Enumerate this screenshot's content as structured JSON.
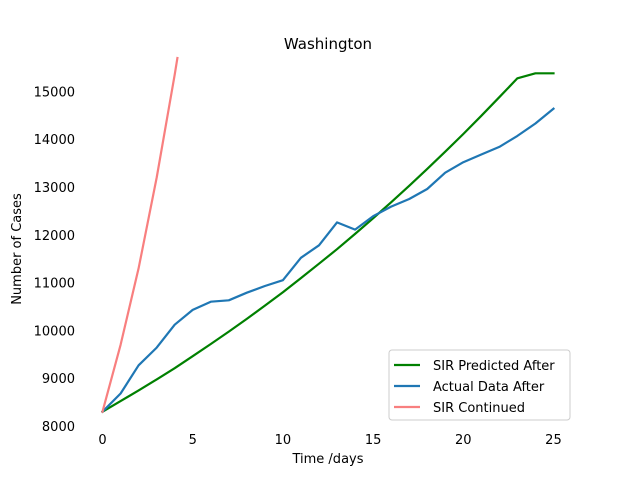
{
  "chart_data": {
    "type": "line",
    "title": "Washington",
    "xlabel": "Time /days",
    "ylabel": "Number of Cases",
    "xlim": [
      -1.25,
      26.25
    ],
    "ylim": [
      8000,
      15700
    ],
    "xticks": [
      0,
      5,
      10,
      15,
      20,
      25
    ],
    "yticks": [
      8000,
      9000,
      10000,
      11000,
      12000,
      13000,
      14000,
      15000
    ],
    "grid": false,
    "legend_position": "lower right",
    "series": [
      {
        "name": "SIR Predicted After",
        "color": "#008000",
        "x": [
          0,
          1,
          2,
          3,
          4,
          5,
          6,
          7,
          8,
          9,
          10,
          11,
          12,
          13,
          14,
          15,
          16,
          17,
          18,
          19,
          20,
          21,
          22,
          23,
          24,
          25
        ],
        "values": [
          8300,
          8520,
          8745,
          8975,
          9210,
          9460,
          9715,
          9975,
          10240,
          10520,
          10800,
          11095,
          11395,
          11700,
          12020,
          12345,
          12680,
          13025,
          13380,
          13740,
          14110,
          14490,
          14880,
          15275,
          15380,
          15380
        ]
      },
      {
        "name": "Actual Data After",
        "color": "#1f77b4",
        "x": [
          0,
          1,
          2,
          3,
          4,
          5,
          6,
          7,
          8,
          9,
          10,
          11,
          12,
          13,
          14,
          15,
          16,
          17,
          18,
          19,
          20,
          21,
          22,
          23,
          24,
          25
        ],
        "values": [
          8300,
          8680,
          9270,
          9640,
          10120,
          10430,
          10600,
          10630,
          10790,
          10930,
          11050,
          11520,
          11780,
          12260,
          12110,
          12390,
          12590,
          12750,
          12960,
          13300,
          13520,
          13680,
          13840,
          14070,
          14330,
          14640
        ]
      },
      {
        "name": "SIR Continued",
        "color": "#f87f7f",
        "x": [
          0,
          1,
          2,
          3,
          4,
          4.15
        ],
        "values": [
          8300,
          9700,
          11300,
          13200,
          15350,
          15700
        ]
      }
    ]
  }
}
